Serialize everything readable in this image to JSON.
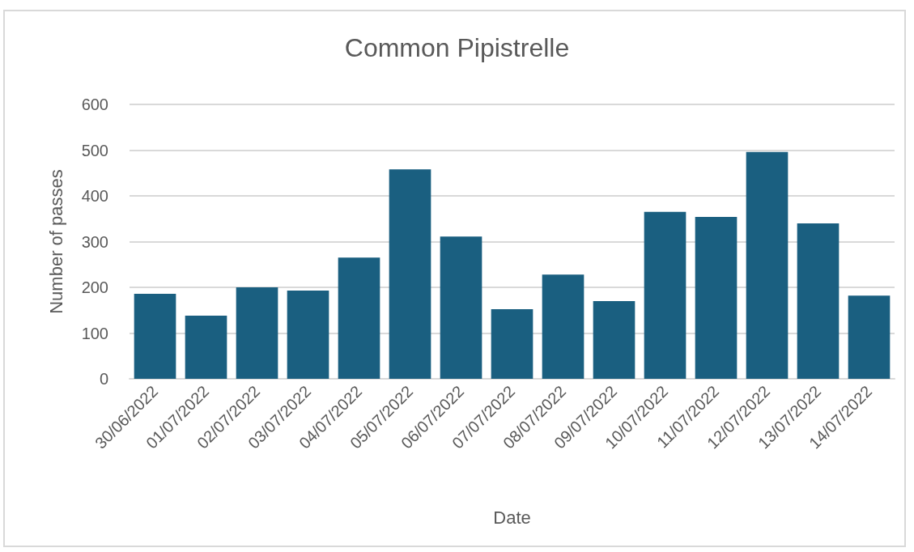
{
  "chart_data": {
    "type": "bar",
    "title": "Common Pipistrelle",
    "xlabel": "Date",
    "ylabel": "Number of passes",
    "categories": [
      "30/06/2022",
      "01/07/2022",
      "02/07/2022",
      "03/07/2022",
      "04/07/2022",
      "05/07/2022",
      "06/07/2022",
      "07/07/2022",
      "08/07/2022",
      "09/07/2022",
      "10/07/2022",
      "11/07/2022",
      "12/07/2022",
      "13/07/2022",
      "14/07/2022"
    ],
    "values": [
      186,
      138,
      200,
      193,
      265,
      458,
      311,
      152,
      228,
      170,
      365,
      354,
      496,
      340,
      182
    ],
    "color": "#1a5f80",
    "ylim": [
      0,
      600
    ],
    "yticks": [
      0,
      100,
      200,
      300,
      400,
      500,
      600
    ],
    "grid": "y"
  }
}
